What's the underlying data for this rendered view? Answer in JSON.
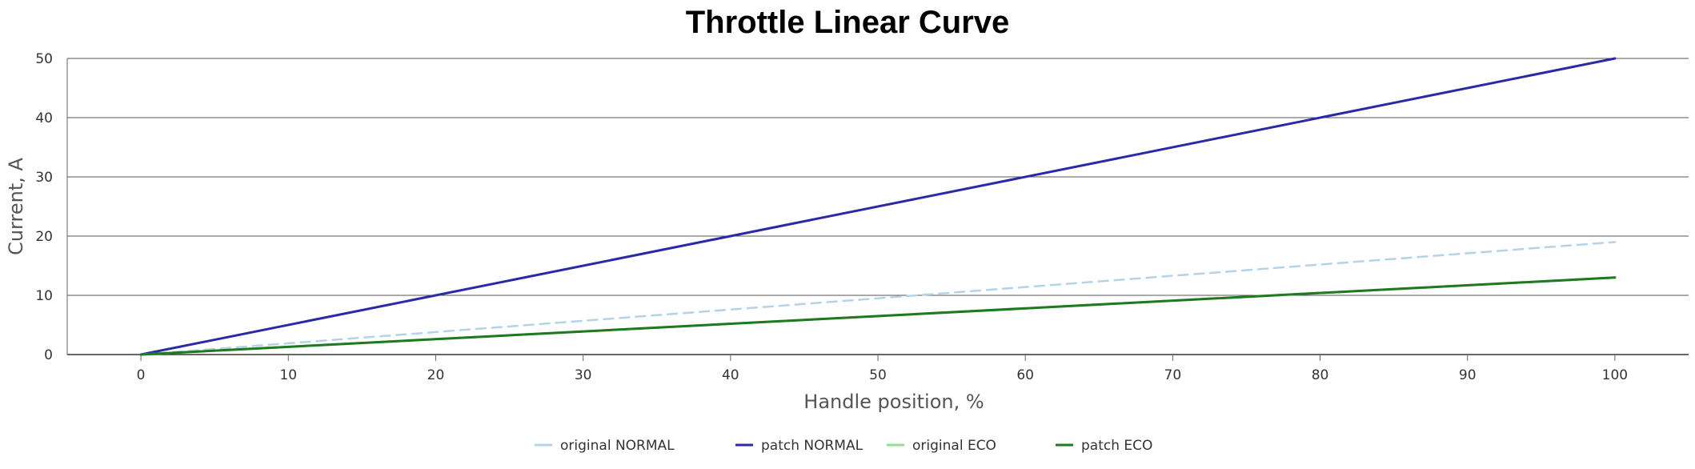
{
  "chart_data": {
    "type": "line",
    "title": "Throttle Linear Curve",
    "xlabel": "Handle position, %",
    "ylabel": "Current, A",
    "xlim": [
      -5,
      105
    ],
    "ylim": [
      0,
      50
    ],
    "x_ticks": [
      0,
      10,
      20,
      30,
      40,
      50,
      60,
      70,
      80,
      90,
      100
    ],
    "y_ticks": [
      0,
      10,
      20,
      30,
      40,
      50
    ],
    "grid": "horizontal",
    "legend_position": "bottom",
    "series": [
      {
        "name": "original NORMAL",
        "color": "#b3d4e6",
        "dash": "dashed",
        "x": [
          0,
          100
        ],
        "y": [
          0,
          19
        ]
      },
      {
        "name": "patch NORMAL",
        "color": "#2a2aa8",
        "dash": "solid",
        "x": [
          0,
          100
        ],
        "y": [
          0,
          50
        ]
      },
      {
        "name": "original ECO",
        "color": "#90e090",
        "dash": "solid",
        "x": [
          0,
          100
        ],
        "y": [
          0,
          13
        ]
      },
      {
        "name": "patch ECO",
        "color": "#1f7a1f",
        "dash": "solid",
        "x": [
          0,
          100
        ],
        "y": [
          0,
          13
        ]
      }
    ]
  }
}
